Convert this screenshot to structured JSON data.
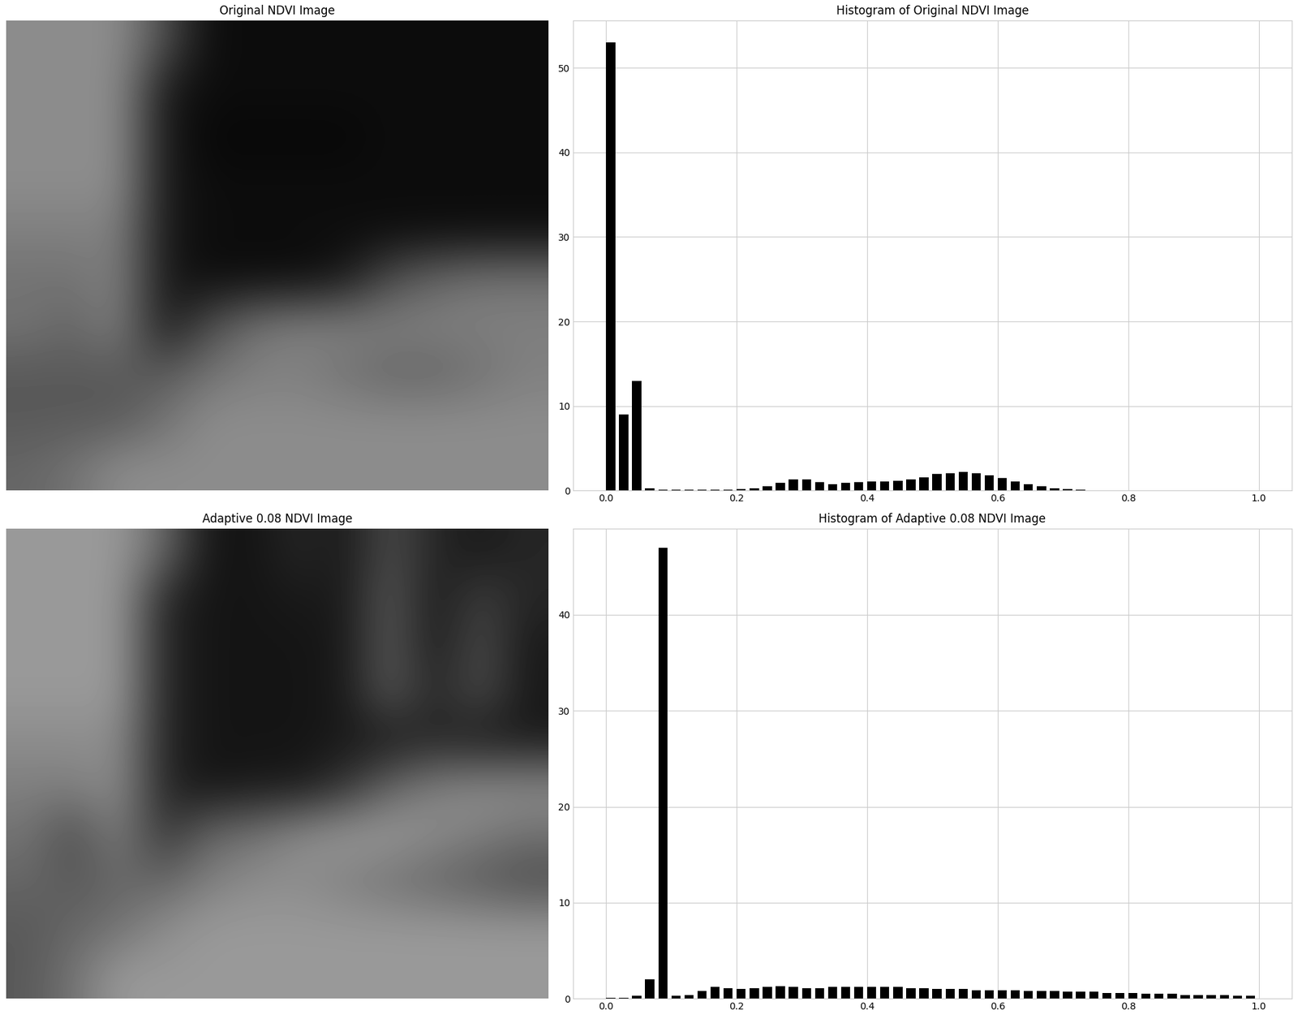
{
  "chart_data": [
    {
      "type": "image",
      "title": "Original NDVI Image",
      "tick_labels": false,
      "color_range": [
        0,
        1
      ],
      "cells": [
        [
          0.55,
          0.55,
          0.55,
          0.3,
          0.05,
          0.05,
          0.05,
          0.05,
          0.05,
          0.05,
          0.05,
          0.05
        ],
        [
          0.55,
          0.55,
          0.55,
          0.1,
          0.05,
          0.05,
          0.05,
          0.05,
          0.05,
          0.05,
          0.05,
          0.05
        ],
        [
          0.55,
          0.55,
          0.55,
          0.1,
          0.03,
          0.03,
          0.03,
          0.03,
          0.05,
          0.05,
          0.05,
          0.05
        ],
        [
          0.55,
          0.55,
          0.55,
          0.1,
          0.05,
          0.05,
          0.05,
          0.05,
          0.05,
          0.05,
          0.05,
          0.05
        ],
        [
          0.5,
          0.5,
          0.5,
          0.1,
          0.05,
          0.05,
          0.05,
          0.05,
          0.05,
          0.05,
          0.05,
          0.05
        ],
        [
          0.45,
          0.45,
          0.5,
          0.1,
          0.05,
          0.05,
          0.05,
          0.1,
          0.3,
          0.4,
          0.45,
          0.45
        ],
        [
          0.45,
          0.4,
          0.5,
          0.1,
          0.3,
          0.45,
          0.5,
          0.5,
          0.5,
          0.5,
          0.5,
          0.5
        ],
        [
          0.35,
          0.35,
          0.35,
          0.35,
          0.45,
          0.5,
          0.5,
          0.45,
          0.4,
          0.4,
          0.45,
          0.5
        ],
        [
          0.35,
          0.35,
          0.35,
          0.45,
          0.55,
          0.55,
          0.55,
          0.55,
          0.55,
          0.55,
          0.55,
          0.55
        ],
        [
          0.4,
          0.45,
          0.55,
          0.55,
          0.55,
          0.55,
          0.55,
          0.55,
          0.55,
          0.55,
          0.55,
          0.55
        ]
      ]
    },
    {
      "type": "histogram",
      "title": "Histogram of Original NDVI Image",
      "color": "#000000",
      "grid": true,
      "bins": [
        0,
        0.02,
        0.04,
        0.06,
        0.08,
        0.1,
        0.12,
        0.14,
        0.16,
        0.18,
        0.2,
        0.22,
        0.24,
        0.26,
        0.28,
        0.3,
        0.32,
        0.34,
        0.36,
        0.38,
        0.4,
        0.42,
        0.44,
        0.46,
        0.48,
        0.5,
        0.52,
        0.54,
        0.56,
        0.58,
        0.6,
        0.62,
        0.64,
        0.66,
        0.68,
        0.7,
        0.72,
        0.74,
        0.76,
        0.78,
        0.8,
        0.82,
        0.84,
        0.86,
        0.88,
        0.9,
        0.92,
        0.94,
        0.96,
        0.98,
        1.0
      ],
      "counts": [
        53,
        9,
        13,
        0.3,
        0.1,
        0.1,
        0.1,
        0.1,
        0.1,
        0.1,
        0.2,
        0.3,
        0.5,
        0.9,
        1.3,
        1.3,
        1.0,
        0.8,
        0.9,
        1.0,
        1.1,
        1.1,
        1.2,
        1.3,
        1.6,
        2.0,
        2.1,
        2.2,
        2.1,
        1.8,
        1.5,
        1.1,
        0.8,
        0.5,
        0.3,
        0.2,
        0.1,
        0.05,
        0,
        0,
        0,
        0,
        0,
        0,
        0,
        0,
        0,
        0,
        0,
        0
      ],
      "xlim": [
        -0.05,
        1.05
      ],
      "ylim": [
        0,
        55.6
      ],
      "xticks": [
        {
          "value": 0,
          "label": "0.0"
        },
        {
          "value": 0.2,
          "label": "0.2"
        },
        {
          "value": 0.4,
          "label": "0.4"
        },
        {
          "value": 0.6,
          "label": "0.6"
        },
        {
          "value": 0.8,
          "label": "0.8"
        },
        {
          "value": 1.0,
          "label": "1.0"
        }
      ],
      "yticks": [
        0,
        10,
        20,
        30,
        40,
        50
      ]
    },
    {
      "type": "image",
      "title": "Adaptive 0.08 NDVI Image",
      "tick_labels": false,
      "color_range": [
        0,
        1
      ],
      "cells": [
        [
          0.6,
          0.6,
          0.6,
          0.4,
          0.08,
          0.08,
          0.15,
          0.1,
          0.3,
          0.15,
          0.1,
          0.15
        ],
        [
          0.6,
          0.6,
          0.6,
          0.15,
          0.08,
          0.08,
          0.1,
          0.1,
          0.35,
          0.1,
          0.25,
          0.15
        ],
        [
          0.6,
          0.6,
          0.6,
          0.15,
          0.08,
          0.08,
          0.08,
          0.1,
          0.35,
          0.1,
          0.3,
          0.1
        ],
        [
          0.6,
          0.6,
          0.6,
          0.15,
          0.08,
          0.08,
          0.08,
          0.1,
          0.35,
          0.15,
          0.3,
          0.1
        ],
        [
          0.55,
          0.55,
          0.55,
          0.15,
          0.08,
          0.08,
          0.08,
          0.1,
          0.1,
          0.15,
          0.1,
          0.1
        ],
        [
          0.5,
          0.5,
          0.55,
          0.15,
          0.08,
          0.1,
          0.1,
          0.2,
          0.4,
          0.5,
          0.55,
          0.55
        ],
        [
          0.45,
          0.3,
          0.5,
          0.2,
          0.4,
          0.45,
          0.55,
          0.6,
          0.6,
          0.55,
          0.5,
          0.45
        ],
        [
          0.4,
          0.35,
          0.4,
          0.4,
          0.5,
          0.55,
          0.55,
          0.5,
          0.45,
          0.4,
          0.35,
          0.3
        ],
        [
          0.35,
          0.4,
          0.45,
          0.55,
          0.6,
          0.6,
          0.6,
          0.6,
          0.6,
          0.6,
          0.6,
          0.6
        ],
        [
          0.35,
          0.45,
          0.6,
          0.6,
          0.6,
          0.6,
          0.6,
          0.6,
          0.6,
          0.6,
          0.6,
          0.6
        ]
      ]
    },
    {
      "type": "histogram",
      "title": "Histogram of Adaptive 0.08 NDVI Image",
      "color": "#000000",
      "grid": true,
      "bins": [
        0,
        0.02,
        0.04,
        0.06,
        0.08,
        0.1,
        0.12,
        0.14,
        0.16,
        0.18,
        0.2,
        0.22,
        0.24,
        0.26,
        0.28,
        0.3,
        0.32,
        0.34,
        0.36,
        0.38,
        0.4,
        0.42,
        0.44,
        0.46,
        0.48,
        0.5,
        0.52,
        0.54,
        0.56,
        0.58,
        0.6,
        0.62,
        0.64,
        0.66,
        0.68,
        0.7,
        0.72,
        0.74,
        0.76,
        0.78,
        0.8,
        0.82,
        0.84,
        0.86,
        0.88,
        0.9,
        0.92,
        0.94,
        0.96,
        0.98,
        1.0
      ],
      "counts": [
        0.05,
        0.1,
        0.3,
        2.0,
        47,
        0.3,
        0.4,
        0.8,
        1.2,
        1.1,
        1.0,
        1.1,
        1.2,
        1.3,
        1.2,
        1.1,
        1.1,
        1.2,
        1.2,
        1.2,
        1.2,
        1.2,
        1.2,
        1.1,
        1.1,
        1.0,
        1.0,
        1.0,
        0.9,
        0.9,
        0.9,
        0.9,
        0.8,
        0.8,
        0.8,
        0.7,
        0.7,
        0.7,
        0.6,
        0.6,
        0.6,
        0.5,
        0.5,
        0.5,
        0.4,
        0.4,
        0.4,
        0.4,
        0.3,
        0.3
      ],
      "xlim": [
        -0.05,
        1.05
      ],
      "ylim": [
        0,
        49
      ],
      "xticks": [
        {
          "value": 0,
          "label": "0.0"
        },
        {
          "value": 0.2,
          "label": "0.2"
        },
        {
          "value": 0.4,
          "label": "0.4"
        },
        {
          "value": 0.6,
          "label": "0.6"
        },
        {
          "value": 0.8,
          "label": "0.8"
        },
        {
          "value": 1.0,
          "label": "1.0"
        }
      ],
      "yticks": [
        0,
        10,
        20,
        30,
        40
      ]
    }
  ]
}
